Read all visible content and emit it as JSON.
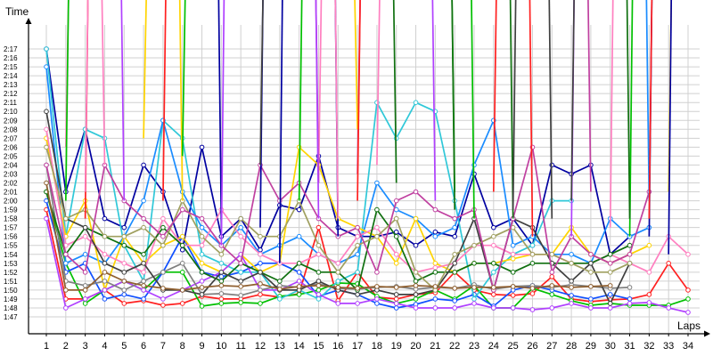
{
  "chart_data": {
    "type": "line",
    "title": "",
    "xlabel": "Laps",
    "ylabel": "Time",
    "grid": true,
    "legend": "none",
    "xlim": [
      1,
      34
    ],
    "ylim": [
      107,
      138
    ],
    "x_ticks": [
      1,
      2,
      3,
      4,
      5,
      6,
      7,
      8,
      9,
      10,
      11,
      12,
      13,
      14,
      15,
      16,
      17,
      18,
      19,
      20,
      21,
      22,
      23,
      24,
      25,
      26,
      27,
      28,
      29,
      30,
      31,
      32,
      33,
      34
    ],
    "y_ticks": [
      {
        "v": 107,
        "label": "1:47"
      },
      {
        "v": 108,
        "label": "1:48"
      },
      {
        "v": 109,
        "label": "1:49"
      },
      {
        "v": 110,
        "label": "1:50"
      },
      {
        "v": 111,
        "label": "1:51"
      },
      {
        "v": 112,
        "label": "1:52"
      },
      {
        "v": 113,
        "label": "1:53"
      },
      {
        "v": 114,
        "label": "1:54"
      },
      {
        "v": 115,
        "label": "1:55"
      },
      {
        "v": 116,
        "label": "1:56"
      },
      {
        "v": 117,
        "label": "1:57"
      },
      {
        "v": 118,
        "label": "1:58"
      },
      {
        "v": 119,
        "label": "1:59"
      },
      {
        "v": 120,
        "label": "2:00"
      },
      {
        "v": 121,
        "label": "2:01"
      },
      {
        "v": 122,
        "label": "2:02"
      },
      {
        "v": 123,
        "label": "2:03"
      },
      {
        "v": 124,
        "label": "2:04"
      },
      {
        "v": 125,
        "label": "2:05"
      },
      {
        "v": 126,
        "label": "2:06"
      },
      {
        "v": 127,
        "label": "2:07"
      },
      {
        "v": 128,
        "label": "2:08"
      },
      {
        "v": 129,
        "label": "2:09"
      },
      {
        "v": 130,
        "label": "2:10"
      },
      {
        "v": 131,
        "label": "2:11"
      },
      {
        "v": 132,
        "label": "2:12"
      },
      {
        "v": 133,
        "label": "2:13"
      },
      {
        "v": 134,
        "label": "2:14"
      },
      {
        "v": 135,
        "label": "2:15"
      },
      {
        "v": 136,
        "label": "2:16"
      },
      {
        "v": 137,
        "label": "2:17"
      }
    ],
    "series": [
      {
        "color": "#ff2020",
        "values": [
          119,
          109,
          109,
          110,
          108.5,
          108.8,
          108.3,
          108.5,
          109.3,
          109,
          109,
          109.5,
          109.2,
          109.6,
          117,
          108.8,
          112,
          109.2,
          109,
          109.5,
          109.7,
          112,
          110,
          109.5,
          109.4,
          109.6,
          111.5,
          109,
          108.7,
          108.9,
          109,
          109.5,
          113,
          110
        ]
      },
      {
        "color": "#00c000",
        "values": [
          121,
          113,
          108.5,
          110,
          111,
          110,
          112,
          112,
          108.2,
          108.5,
          108.6,
          108.5,
          109.3,
          109.5,
          110,
          110.8,
          110.7,
          109.3,
          108.5,
          109,
          110,
          109,
          110.5,
          108,
          108,
          110.2,
          109.5,
          108.8,
          108.3,
          108.5,
          108.3,
          108.3,
          108.3,
          109
        ]
      },
      {
        "color": "#1050ff",
        "values": [
          120,
          112,
          113,
          109,
          109.5,
          109,
          112,
          116,
          112,
          111.5,
          112,
          113,
          113,
          112,
          109.3,
          110,
          109.5,
          108.5,
          108,
          108.4,
          109,
          108.8,
          109.5,
          108.2,
          110,
          110.5,
          110,
          109.4,
          109,
          109.5,
          109,
          null,
          null,
          null
        ]
      },
      {
        "color": "#0000a0",
        "values": [
          137,
          121,
          128,
          118,
          117,
          124,
          121,
          114.5,
          126,
          116,
          118,
          114.5,
          119.5,
          119,
          125,
          117,
          116,
          116,
          116.5,
          115,
          116.5,
          116,
          123,
          117,
          118,
          115,
          124,
          123,
          124,
          114,
          116,
          null,
          null,
          null
        ]
      },
      {
        "color": "#30c8d8",
        "values": [
          137,
          116,
          128,
          127,
          115,
          111,
          129,
          127,
          114,
          113,
          112,
          112,
          109,
          110,
          109,
          111,
          112,
          131,
          127,
          131,
          130,
          120,
          109,
          112,
          114,
          115,
          120,
          120,
          null,
          null,
          null,
          null,
          null,
          null
        ]
      },
      {
        "color": "#1a8cff",
        "values": [
          135,
          113,
          114,
          113,
          116,
          120,
          129,
          121,
          117,
          115,
          117,
          114,
          115,
          116,
          114,
          113,
          114,
          122,
          119,
          118,
          116,
          117,
          124,
          129,
          115,
          116,
          114,
          114,
          113,
          118,
          116,
          117,
          null,
          null
        ]
      },
      {
        "color": "#ffd400",
        "values": [
          127,
          116,
          120,
          110,
          116,
          113,
          115,
          116,
          113,
          112,
          114,
          112,
          113,
          126,
          124,
          118,
          117,
          116,
          113,
          118,
          113,
          112,
          113,
          113,
          113.5,
          114,
          114,
          117,
          114,
          113,
          114,
          115,
          null,
          null
        ]
      },
      {
        "color": "#ff80c0",
        "values": [
          128,
          115,
          116,
          114,
          113,
          112,
          118,
          115,
          115,
          119,
          116,
          114,
          113,
          113,
          114,
          113,
          116,
          117,
          114,
          112,
          112.5,
          113,
          115,
          115,
          114,
          114,
          114,
          113,
          113,
          114,
          113,
          112,
          116,
          114
        ]
      },
      {
        "color": "#b040ff",
        "values": [
          118,
          108,
          109,
          110,
          111,
          110,
          109,
          110,
          111,
          112,
          114,
          110,
          110,
          111,
          109.5,
          108.5,
          108.5,
          109,
          108.5,
          108,
          108,
          108,
          108.5,
          108,
          108,
          107.8,
          108,
          108.5,
          108,
          108,
          108.5,
          108.6,
          108,
          107.5
        ]
      },
      {
        "color": "#808080",
        "values": [
          124,
          111,
          110.5,
          111,
          110,
          111,
          112,
          113,
          109.5,
          109.6,
          109.4,
          110,
          110.5,
          110.3,
          110.7,
          110.2,
          110.1,
          110.3,
          110.4,
          110.1,
          110.3,
          110.2,
          110.6,
          110.1,
          110.4,
          110.5,
          110.3,
          110.6,
          110.4,
          110.2,
          110.3,
          null,
          null,
          null
        ]
      },
      {
        "color": "#107010",
        "values": [
          121,
          114,
          117,
          116,
          115,
          114,
          117,
          115,
          112,
          111,
          113,
          112,
          111,
          113,
          112,
          112,
          110,
          119,
          116,
          111,
          112,
          112,
          113,
          113,
          112,
          113,
          113,
          113,
          113,
          114,
          115,
          null,
          null,
          null
        ]
      },
      {
        "color": "#404040",
        "values": [
          130,
          118,
          117,
          113,
          112,
          113,
          110,
          110,
          109.5,
          112,
          111,
          112,
          110,
          110,
          111,
          110,
          109.5,
          110,
          109.5,
          109.5,
          110,
          113,
          118,
          110,
          118,
          117,
          113,
          111,
          113,
          108.5,
          113,
          null,
          null,
          null
        ]
      },
      {
        "color": "#a0a060",
        "values": [
          126,
          118,
          119,
          116,
          116,
          117,
          115,
          120,
          116,
          114,
          118,
          116,
          116,
          120,
          115,
          112,
          115,
          116,
          118,
          112,
          110,
          114,
          115,
          116,
          117,
          114,
          114,
          113,
          112,
          112,
          113,
          null,
          null,
          null
        ]
      },
      {
        "color": "#c040a0",
        "values": [
          124,
          114,
          112,
          124,
          120,
          118,
          116,
          119,
          118,
          115,
          113,
          124,
          120,
          122,
          118,
          116,
          117,
          112,
          120,
          121,
          119,
          118,
          119,
          110,
          118,
          126,
          112,
          116,
          114,
          113,
          114,
          121,
          null,
          null
        ]
      },
      {
        "color": "#906030",
        "values": [
          122,
          110,
          110,
          112,
          111,
          110.5,
          110.2,
          110,
          110.3,
          110.5,
          110.4,
          110.7,
          110.1,
          110.4,
          110.5,
          110.3,
          110.2,
          110.4,
          110.3,
          110.5,
          110.4,
          110.2,
          110.3,
          110.3,
          110.4,
          110.2,
          110.5,
          110.3,
          110.4,
          110.5,
          null,
          null,
          null,
          null
        ]
      }
    ],
    "spikes": [
      {
        "x": 2,
        "from": 126,
        "color": "#ff80c0"
      },
      {
        "x": 2,
        "from": 120,
        "color": "#00c000"
      },
      {
        "x": 3,
        "from": 118,
        "color": "#ff2020"
      },
      {
        "x": 3,
        "from": 121,
        "color": "#ff80c0"
      },
      {
        "x": 4,
        "from": 124,
        "color": "#ff80c0"
      },
      {
        "x": 5,
        "from": 120,
        "color": "#b040ff"
      },
      {
        "x": 6,
        "from": 127,
        "color": "#ffd400"
      },
      {
        "x": 7,
        "from": 120,
        "color": "#ff2020"
      },
      {
        "x": 8,
        "from": 120,
        "color": "#ffd400"
      },
      {
        "x": 8,
        "from": 125,
        "color": "#00c000"
      },
      {
        "x": 10,
        "from": 117,
        "color": "#0000a0"
      },
      {
        "x": 10,
        "from": 115,
        "color": "#b040ff"
      },
      {
        "x": 12,
        "from": 117,
        "color": "#0000a0"
      },
      {
        "x": 12,
        "from": 124,
        "color": "#404040"
      },
      {
        "x": 13,
        "from": 113,
        "color": "#0000a0"
      },
      {
        "x": 14,
        "from": 120,
        "color": "#00c000"
      },
      {
        "x": 15,
        "from": 122,
        "color": "#ff80c0"
      },
      {
        "x": 15,
        "from": 122,
        "color": "#c040a0"
      },
      {
        "x": 15,
        "from": 118,
        "color": "#b040ff"
      },
      {
        "x": 16,
        "from": 116,
        "color": "#0000a0"
      },
      {
        "x": 16,
        "from": 118,
        "color": "#ff80c0"
      },
      {
        "x": 17,
        "from": 123,
        "color": "#c040a0"
      },
      {
        "x": 17,
        "from": 128,
        "color": "#ffd400"
      },
      {
        "x": 17,
        "from": 120,
        "color": "#ff2020"
      },
      {
        "x": 18,
        "from": 124,
        "color": "#ff80c0"
      },
      {
        "x": 19,
        "from": 122,
        "color": "#107010"
      },
      {
        "x": 21,
        "from": 120,
        "color": "#b040ff"
      },
      {
        "x": 22,
        "from": 121,
        "color": "#00c000"
      },
      {
        "x": 22,
        "from": 119,
        "color": "#107010"
      },
      {
        "x": 23,
        "from": 118,
        "color": "#00c000"
      },
      {
        "x": 24,
        "from": 121,
        "color": "#ff2020"
      },
      {
        "x": 25,
        "from": 118,
        "color": "#107010"
      },
      {
        "x": 25,
        "from": 119,
        "color": "#404040"
      },
      {
        "x": 26,
        "from": 116,
        "color": "#ff2020"
      },
      {
        "x": 27,
        "from": 118,
        "color": "#404040"
      },
      {
        "x": 28,
        "from": 116,
        "color": "#b040ff"
      },
      {
        "x": 28,
        "from": 120,
        "color": "#404040"
      },
      {
        "x": 29,
        "from": 121,
        "color": "#c040a0"
      },
      {
        "x": 30,
        "from": 117,
        "color": "#ff80c0"
      },
      {
        "x": 31,
        "from": 116,
        "color": "#00c000"
      },
      {
        "x": 31,
        "from": 118,
        "color": "#107010"
      },
      {
        "x": 32,
        "from": 116,
        "color": "#0000a0"
      },
      {
        "x": 32,
        "from": 120,
        "color": "#1a8cff"
      },
      {
        "x": 32,
        "from": 118,
        "color": "#ff2020"
      },
      {
        "x": 33,
        "from": 121,
        "color": "#ffd400"
      },
      {
        "x": 33,
        "from": 114,
        "color": "#0000a0"
      }
    ]
  }
}
